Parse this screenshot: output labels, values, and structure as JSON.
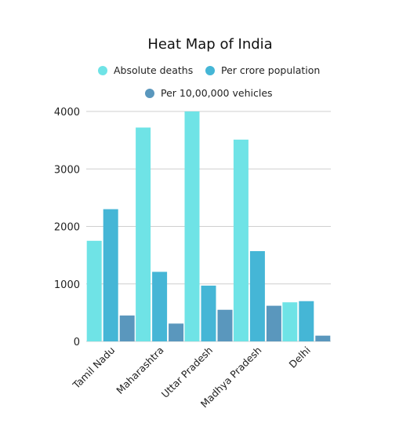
{
  "chart_data": {
    "type": "bar",
    "title": "Heat Map of India",
    "categories": [
      "Tamil Nadu",
      "Maharashtra",
      "Uttar Pradesh",
      "Madhya Pradesh",
      "Delhi"
    ],
    "series": [
      {
        "name": "Absolute deaths",
        "color": "#6fe3e6",
        "values": [
          1750,
          3720,
          4000,
          3510,
          680
        ]
      },
      {
        "name": "Per crore population",
        "color": "#45b6d6",
        "values": [
          2300,
          1210,
          970,
          1570,
          700
        ]
      },
      {
        "name": "Per 10,00,000 vehicles",
        "color": "#5a97bd",
        "values": [
          450,
          310,
          550,
          620,
          100
        ]
      }
    ],
    "ylim": [
      0,
      4000
    ],
    "yticks": [
      0,
      1000,
      2000,
      3000,
      4000
    ],
    "grid": true,
    "legend_position": "top"
  }
}
